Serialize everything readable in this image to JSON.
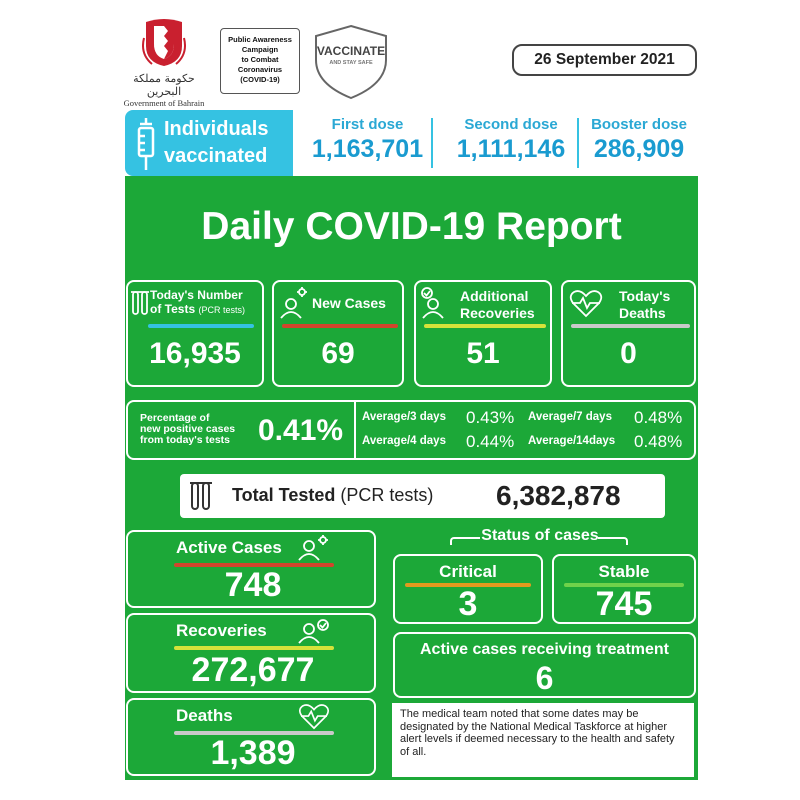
{
  "header": {
    "gov_ar": "حكومة مملكة البحرين",
    "gov_en": "Government of Bahrain",
    "campaign": [
      "Public Awareness",
      "Campaign",
      "to Combat",
      "Coronavirus",
      "(COVID-19)"
    ],
    "shield_title": "VACCINATE",
    "shield_sub": "AND STAY SAFE",
    "date": "26 September 2021"
  },
  "vaccination": {
    "label_line1": "Individuals",
    "label_line2": "vaccinated",
    "icon": "syringe-icon",
    "first_label": "First dose",
    "first_value": "1,163,701",
    "second_label": "Second dose",
    "second_value": "1,111,146",
    "booster_label": "Booster dose",
    "booster_value": "286,909"
  },
  "title": "Daily COVID-19 Report",
  "daily": {
    "tests_label1": "Today's Number",
    "tests_label2": "of Tests",
    "tests_sub": "(PCR tests)",
    "tests_value": "16,935",
    "new_cases_label": "New Cases",
    "new_cases_value": "69",
    "recoveries_label1": "Additional",
    "recoveries_label2": "Recoveries",
    "recoveries_value": "51",
    "deaths_label1": "Today's",
    "deaths_label2": "Deaths",
    "deaths_value": "0"
  },
  "positivity": {
    "label1": "Percentage of",
    "label2": "new positive cases",
    "label3": "from today's tests",
    "value": "0.41%",
    "avg3_label": "Average/3 days",
    "avg3_value": "0.43%",
    "avg4_label": "Average/4 days",
    "avg4_value": "0.44%",
    "avg7_label": "Average/7 days",
    "avg7_value": "0.48%",
    "avg14_label": "Average/14days",
    "avg14_value": "0.48%"
  },
  "total_tested": {
    "label_bold": "Total Tested",
    "label_rest": " (PCR tests)",
    "value": "6,382,878"
  },
  "cases": {
    "active_label": "Active Cases",
    "active_value": "748",
    "recoveries_label": "Recoveries",
    "recoveries_value": "272,677",
    "deaths_label": "Deaths",
    "deaths_value": "1,389"
  },
  "status": {
    "title": "Status of cases",
    "critical_label": "Critical",
    "critical_value": "3",
    "stable_label": "Stable",
    "stable_value": "745",
    "treatment_label": "Active cases receiving treatment",
    "treatment_value": "6"
  },
  "note": "The medical team noted that some dates may be designated by the National Medical Taskforce at higher alert levels if deemed necessary to the health and safety of all.",
  "colors": {
    "green": "#1ca838",
    "cyan": "#35c2e2",
    "red_bar": "#d2452c",
    "orange_bar": "#e29a1e",
    "yellow_bar": "#d6e23a",
    "light_green_bar": "#6fd24a",
    "grey_bar": "#c9c9c9"
  }
}
